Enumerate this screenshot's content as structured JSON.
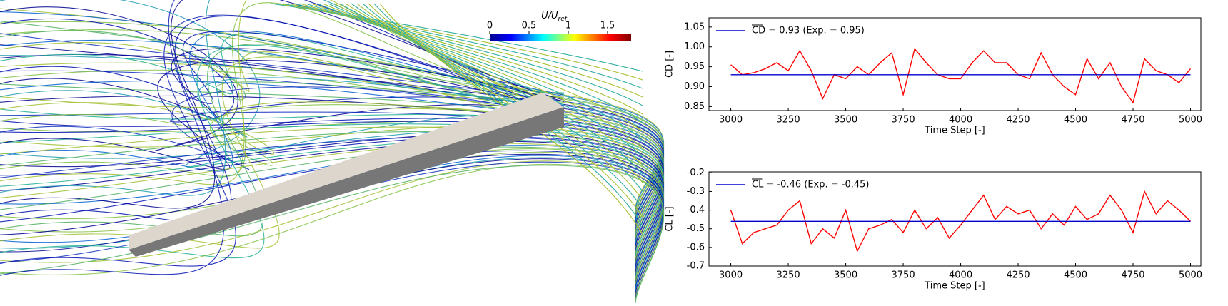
{
  "colorbar": {
    "label": "U/U",
    "label_sub": "ref",
    "lim": [
      0,
      1.8
    ],
    "ticks": [
      0,
      0.5,
      1,
      1.5
    ]
  },
  "chart_data": [
    {
      "type": "line",
      "x_label": "Time Step [-]",
      "y_label": "CD [-]",
      "xlim": [
        2905,
        5045
      ],
      "xticks": [
        3000,
        3250,
        3500,
        3750,
        4000,
        4250,
        4500,
        4750,
        5000
      ],
      "ylim": [
        0.84,
        1.073
      ],
      "yticks": [
        0.85,
        {
          "value": 0.9,
          "label": "0.90"
        },
        0.95,
        {
          "value": 1,
          "label": "1.00"
        },
        1.05
      ],
      "legend": "upper left",
      "series": [
        {
          "color": "#ff0000",
          "x": [
            3000,
            3050,
            3100,
            3150,
            3200,
            3250,
            3300,
            3350,
            3400,
            3450,
            3500,
            3550,
            3600,
            3650,
            3700,
            3750,
            3800,
            3850,
            3900,
            3950,
            4000,
            4050,
            4100,
            4150,
            4200,
            4250,
            4300,
            4350,
            4400,
            4450,
            4500,
            4550,
            4600,
            4650,
            4700,
            4750,
            4800,
            4850,
            4900,
            4950,
            5000
          ],
          "values": [
            0.955,
            0.93,
            0.935,
            0.945,
            0.96,
            0.94,
            0.99,
            0.94,
            0.87,
            0.93,
            0.92,
            0.95,
            0.93,
            0.96,
            0.985,
            0.88,
            0.995,
            0.96,
            0.93,
            0.92,
            0.92,
            0.96,
            0.99,
            0.96,
            0.96,
            0.93,
            0.92,
            0.985,
            0.93,
            0.9,
            0.88,
            0.97,
            0.92,
            0.96,
            0.9,
            0.86,
            0.97,
            0.94,
            0.93,
            0.91,
            0.945
          ]
        },
        {
          "name": "CD = 0.93 (Exp. = 0.95)",
          "color": "#0000cc",
          "x": [
            3000,
            5000
          ],
          "values": [
            0.93,
            0.93
          ]
        }
      ]
    },
    {
      "type": "line",
      "x_label": "Time Step [-]",
      "y_label": "CL [-]",
      "xlim": [
        2905,
        5045
      ],
      "xticks": [
        3000,
        3250,
        3500,
        3750,
        4000,
        4250,
        4500,
        4750,
        5000
      ],
      "ylim": [
        -0.7,
        -0.195
      ],
      "yticks": [
        -0.7,
        -0.6,
        -0.5,
        -0.4,
        -0.3,
        -0.2
      ],
      "legend": "upper left",
      "series": [
        {
          "color": "#ff0000",
          "x": [
            3000,
            3050,
            3100,
            3150,
            3200,
            3250,
            3300,
            3350,
            3400,
            3450,
            3500,
            3550,
            3600,
            3650,
            3700,
            3750,
            3800,
            3850,
            3900,
            3950,
            4000,
            4050,
            4100,
            4150,
            4200,
            4250,
            4300,
            4350,
            4400,
            4450,
            4500,
            4550,
            4600,
            4650,
            4700,
            4750,
            4800,
            4850,
            4900,
            4950,
            5000
          ],
          "values": [
            -0.4,
            -0.58,
            -0.52,
            -0.5,
            -0.48,
            -0.4,
            -0.35,
            -0.58,
            -0.5,
            -0.55,
            -0.4,
            -0.62,
            -0.5,
            -0.48,
            -0.45,
            -0.52,
            -0.4,
            -0.5,
            -0.44,
            -0.55,
            -0.48,
            -0.4,
            -0.32,
            -0.45,
            -0.38,
            -0.42,
            -0.4,
            -0.5,
            -0.42,
            -0.48,
            -0.38,
            -0.45,
            -0.42,
            -0.32,
            -0.4,
            -0.52,
            -0.3,
            -0.42,
            -0.35,
            -0.4,
            -0.46
          ]
        },
        {
          "name": "CL = -0.46 (Exp. = -0.45)",
          "color": "#0000cc",
          "x": [
            3000,
            5000
          ],
          "values": [
            -0.46,
            -0.46
          ]
        }
      ]
    }
  ]
}
